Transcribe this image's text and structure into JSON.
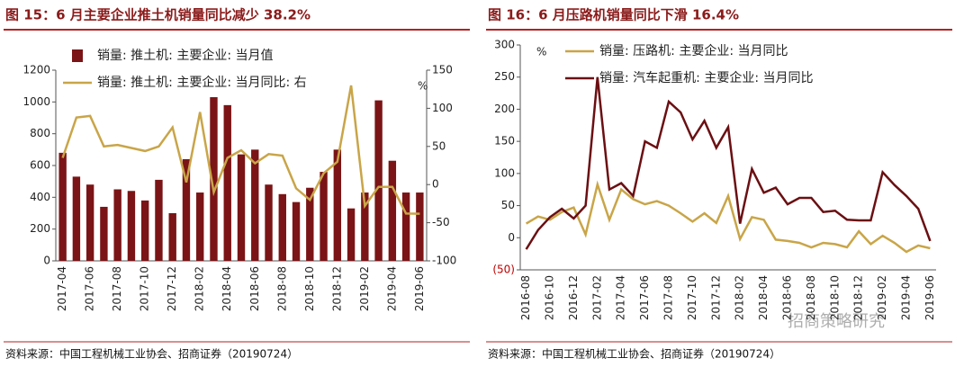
{
  "chart_data": [
    {
      "type": "bar",
      "title": "图 15：6 月主要企业推土机销量同比减少 38.2%",
      "source": "资料来源：中国工程机械工业协会、招商证券（20190724）",
      "y2label": "%",
      "categories": [
        "2017-04",
        null,
        "2017-06",
        null,
        "2017-08",
        null,
        "2017-10",
        null,
        "2017-12",
        null,
        "2018-02",
        null,
        "2018-04",
        null,
        "2018-06",
        null,
        "2018-08",
        null,
        "2018-10",
        null,
        "2018-12",
        null,
        "2019-02",
        null,
        "2019-04",
        null,
        "2019-06"
      ],
      "series": [
        {
          "name": "销量: 推土机: 主要企业: 当月值",
          "type": "bar",
          "color": "#7b1416",
          "values": [
            680,
            530,
            480,
            340,
            450,
            440,
            380,
            510,
            300,
            640,
            430,
            1030,
            980,
            670,
            700,
            480,
            420,
            370,
            460,
            560,
            700,
            330,
            430,
            1010,
            630,
            430,
            430
          ]
        },
        {
          "name": "销量: 推土机: 主要企业: 当月同比: 右",
          "type": "line",
          "axis": "y2",
          "color": "#c9a548",
          "values": [
            35,
            88,
            90,
            50,
            52,
            48,
            44,
            50,
            75,
            3,
            95,
            -10,
            35,
            45,
            28,
            40,
            38,
            -5,
            -20,
            15,
            30,
            130,
            -28,
            -3,
            -3,
            -38,
            -38.2
          ]
        }
      ],
      "ylim": [
        0,
        1200
      ],
      "yticks": [
        0,
        200,
        400,
        600,
        800,
        1000,
        1200
      ],
      "y2lim": [
        -100,
        150
      ],
      "y2ticks": [
        -100,
        -50,
        0,
        50,
        100,
        150
      ]
    },
    {
      "type": "line",
      "title": "图 16：6 月压路机销量同比下滑 16.4%",
      "source": "资料来源：中国工程机械工业协会、招商证券（20190724）",
      "ylabel": "%",
      "categories": [
        "2016-08",
        null,
        "2016-10",
        null,
        "2016-12",
        null,
        "2017-02",
        null,
        "2017-04",
        null,
        "2017-06",
        null,
        "2017-08",
        null,
        "2017-10",
        null,
        "2017-12",
        null,
        "2018-02",
        null,
        "2018-04",
        null,
        "2018-06",
        null,
        "2018-08",
        null,
        "2018-10",
        null,
        "2018-12",
        null,
        "2019-02",
        null,
        "2019-04",
        null,
        "2019-06"
      ],
      "series": [
        {
          "name": "销量: 压路机: 主要企业: 当月同比",
          "color": "#c9a548",
          "values": [
            22,
            33,
            28,
            40,
            47,
            5,
            83,
            28,
            75,
            60,
            52,
            57,
            50,
            38,
            25,
            38,
            23,
            65,
            -2,
            32,
            28,
            -3,
            -5,
            -8,
            -15,
            -8,
            -10,
            -15,
            10,
            -10,
            3,
            -8,
            -22,
            -12,
            -16.4
          ]
        },
        {
          "name": "销量: 汽车起重机: 主要企业: 当月同比",
          "color": "#6b0f12",
          "values": [
            -18,
            12,
            32,
            45,
            30,
            50,
            250,
            75,
            85,
            65,
            150,
            140,
            212,
            195,
            153,
            182,
            140,
            172,
            22,
            107,
            70,
            78,
            52,
            62,
            62,
            40,
            42,
            28,
            27,
            27,
            102,
            82,
            65,
            45,
            -5
          ]
        }
      ],
      "ylim": [
        -50,
        300
      ],
      "yticks": [
        {
          "value": -50,
          "label": "(50)"
        },
        0,
        50,
        100,
        150,
        200,
        250,
        300
      ]
    }
  ],
  "watermark": "招商策略研究"
}
